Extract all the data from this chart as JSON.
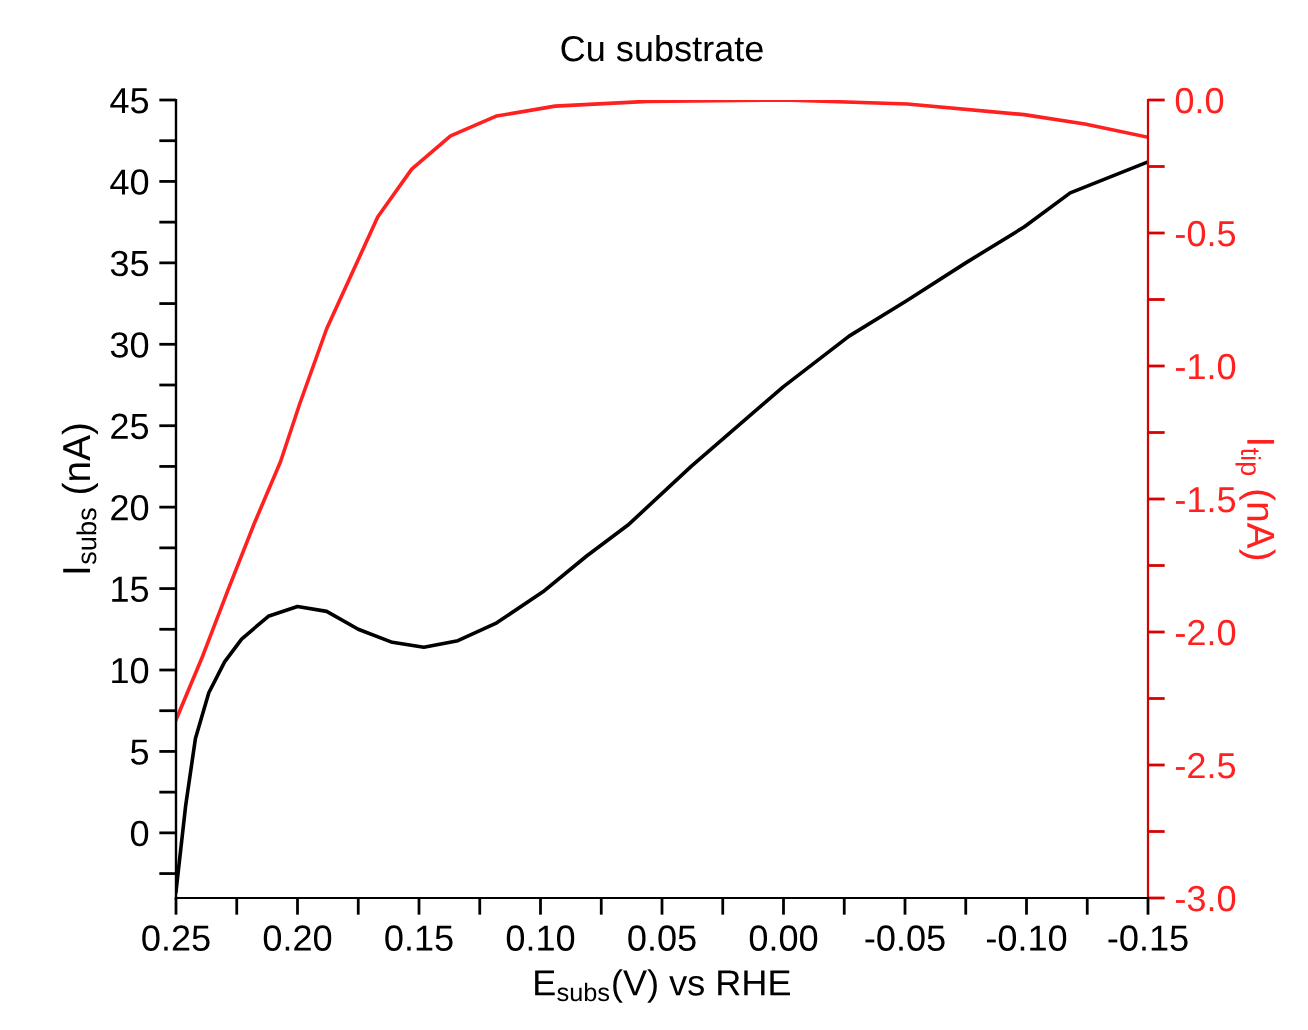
{
  "chart_data": {
    "type": "line",
    "title": "Cu substrate",
    "xlabel": "E$_{subs}$(V) vs RHE",
    "ylabel": "I$_{subs}$ (nA)",
    "y2label": "I$_{tip}$ (nA)",
    "xlim": [
      0.25,
      -0.15
    ],
    "xticks": [
      {
        "value": 0.25,
        "label": "0.25"
      },
      {
        "value": 0.225,
        "label": null
      },
      {
        "value": 0.2,
        "label": "0.20"
      },
      {
        "value": 0.175,
        "label": null
      },
      {
        "value": 0.15,
        "label": "0.15"
      },
      {
        "value": 0.125,
        "label": null
      },
      {
        "value": 0.1,
        "label": "0.10"
      },
      {
        "value": 0.075,
        "label": null
      },
      {
        "value": 0.05,
        "label": "0.05"
      },
      {
        "value": 0.025,
        "label": null
      },
      {
        "value": 0,
        "label": "0.00"
      },
      {
        "value": -0.025,
        "label": null
      },
      {
        "value": -0.05,
        "label": "-0.05"
      },
      {
        "value": -0.075,
        "label": null
      },
      {
        "value": -0.1,
        "label": "-0.10"
      },
      {
        "value": -0.125,
        "label": null
      },
      {
        "value": -0.15,
        "label": "-0.15"
      }
    ],
    "ylim": [
      -4,
      45
    ],
    "yticks": [
      {
        "value": -2.5,
        "label": null
      },
      0,
      {
        "value": 2.5,
        "label": null
      },
      5,
      {
        "value": 7.5,
        "label": null
      },
      10,
      {
        "value": 12.5,
        "label": null
      },
      15,
      {
        "value": 17.5,
        "label": null
      },
      20,
      {
        "value": 22.5,
        "label": null
      },
      25,
      {
        "value": 27.5,
        "label": null
      },
      30,
      {
        "value": 32.5,
        "label": null
      },
      35,
      {
        "value": 37.5,
        "label": null
      },
      40,
      {
        "value": 42.5,
        "label": null
      },
      45
    ],
    "y2lim": [
      -3,
      0
    ],
    "y2ticks": [
      {
        "value": -3,
        "label": "-3.0"
      },
      {
        "value": -2.75,
        "label": null
      },
      {
        "value": -2.5,
        "label": "-2.5"
      },
      {
        "value": -2.25,
        "label": null
      },
      {
        "value": -2,
        "label": "-2.0"
      },
      {
        "value": -1.75,
        "label": null
      },
      {
        "value": -1.5,
        "label": "-1.5"
      },
      {
        "value": -1.25,
        "label": null
      },
      {
        "value": -1,
        "label": "-1.0"
      },
      {
        "value": -0.75,
        "label": null
      },
      {
        "value": -0.5,
        "label": "-0.5"
      },
      {
        "value": -0.25,
        "label": null
      },
      {
        "value": 0,
        "label": "0.0"
      }
    ],
    "grid": false,
    "legend": false,
    "series": [
      {
        "color": "#000000",
        "x": [
          0.25,
          0.246,
          0.242,
          0.2365,
          0.23,
          0.223,
          0.212,
          0.2,
          0.188,
          0.175,
          0.161,
          0.148,
          0.134,
          0.118,
          0.099,
          0.081,
          0.064,
          0.038,
          0,
          -0.027,
          -0.051,
          -0.075,
          -0.099,
          -0.118,
          -0.15
        ],
        "values": [
          -3.6,
          1.7,
          5.8,
          8.6,
          10.5,
          11.9,
          13.3,
          13.9,
          13.6,
          12.5,
          11.7,
          11.4,
          11.8,
          12.9,
          14.8,
          17.0,
          18.9,
          22.5,
          27.4,
          30.5,
          32.7,
          35.0,
          37.2,
          39.3,
          41.2
        ]
      },
      {
        "color": "#ff2020",
        "axis": "y2",
        "x": [
          0.25,
          0.239,
          0.2285,
          0.2177,
          0.207,
          0.199,
          0.188,
          0.177,
          0.167,
          0.153,
          0.137,
          0.118,
          0.094,
          0.056,
          0,
          -0.051,
          -0.099,
          -0.124,
          -0.15
        ],
        "values": [
          -2.33,
          -2.09,
          -1.84,
          -1.59,
          -1.36,
          -1.14,
          -0.86,
          -0.64,
          -0.44,
          -0.26,
          -0.135,
          -0.06,
          -0.023,
          -0.005,
          0.0,
          -0.015,
          -0.055,
          -0.09,
          -0.14
        ]
      }
    ]
  }
}
